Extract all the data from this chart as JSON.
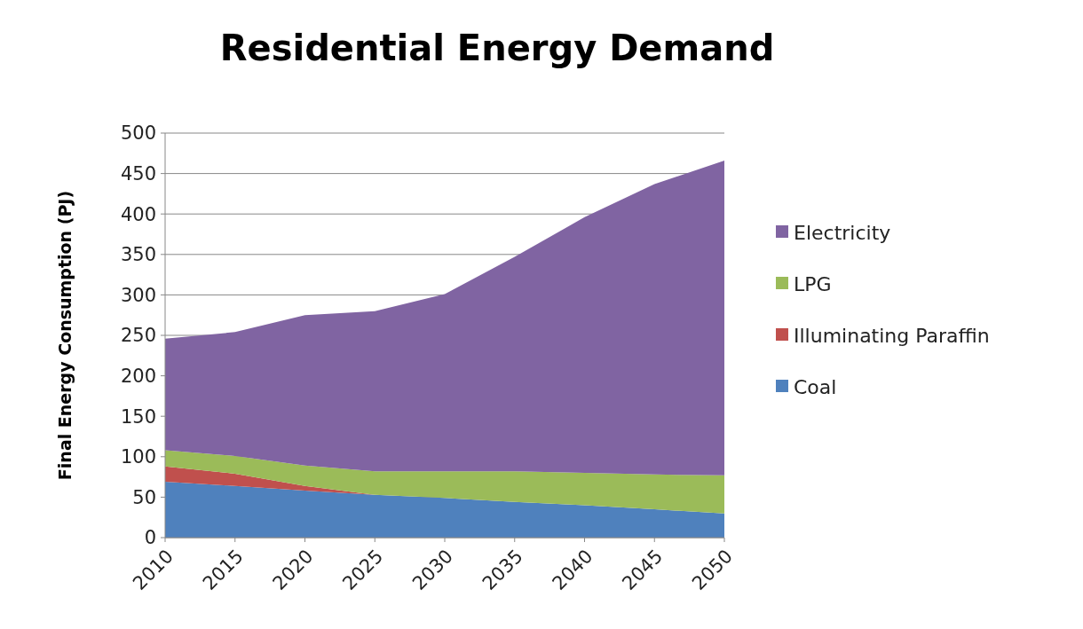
{
  "chart_data": {
    "type": "area",
    "title": "Residential Energy Demand",
    "ylabel": "Final Energy Consumption (PJ)",
    "stacked": true,
    "x": [
      2010,
      2015,
      2020,
      2025,
      2030,
      2035,
      2040,
      2045,
      2050
    ],
    "xlim": [
      2010,
      2050
    ],
    "xticks": [
      2010,
      2015,
      2020,
      2025,
      2030,
      2035,
      2040,
      2045,
      2050
    ],
    "ylim": [
      0,
      500
    ],
    "yticks": [
      0,
      50,
      100,
      150,
      200,
      250,
      300,
      350,
      400,
      450,
      500
    ],
    "grid": "y",
    "legend": "right",
    "series": [
      {
        "name": "Coal",
        "color": "#4f81bd",
        "values": [
          69,
          64,
          58,
          53,
          49,
          44,
          40,
          35,
          30
        ]
      },
      {
        "name": "Illuminating Paraffin",
        "color": "#c0504d",
        "values": [
          19,
          15,
          6,
          0,
          0,
          0,
          0,
          0,
          0
        ]
      },
      {
        "name": "LPG",
        "color": "#9bbb59",
        "values": [
          20,
          22,
          25,
          29,
          33,
          38,
          40,
          43,
          47
        ]
      },
      {
        "name": "Electricity",
        "color": "#8064a2",
        "values": [
          138,
          153,
          186,
          198,
          219,
          265,
          316,
          359,
          389
        ]
      }
    ]
  }
}
